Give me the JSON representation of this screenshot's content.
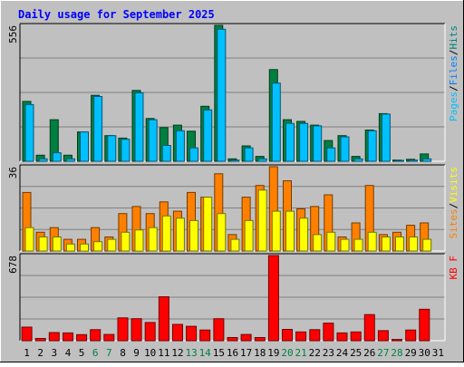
{
  "chart_data": {
    "type": "bar",
    "title": "Daily usage for September 2025",
    "categories": [
      "1",
      "2",
      "3",
      "4",
      "5",
      "6",
      "7",
      "8",
      "9",
      "10",
      "11",
      "12",
      "13",
      "14",
      "15",
      "16",
      "17",
      "18",
      "19",
      "20",
      "21",
      "22",
      "23",
      "24",
      "25",
      "26",
      "27",
      "28",
      "29",
      "30",
      "31"
    ],
    "weekend_days": [
      "6",
      "7",
      "13",
      "14",
      "20",
      "21",
      "27",
      "28"
    ],
    "panels": [
      {
        "id": "hits",
        "ymax_label": "556",
        "ymax": 556,
        "legend": [
          "Pages",
          "/",
          "Files",
          "/",
          "Hits"
        ],
        "series": [
          {
            "name": "Hits",
            "color": "#008040",
            "values": [
              245,
              25,
              170,
              25,
              120,
              270,
              105,
              95,
              290,
              175,
              138,
              148,
              123,
              225,
              556,
              10,
              63,
              20,
              375,
              170,
              163,
              148,
              85,
              105,
              20,
              128,
              195,
              5,
              8,
              30,
              0
            ]
          },
          {
            "name": "Files",
            "color": "#00C0FF",
            "values": [
              232,
              10,
              35,
              10,
              120,
              265,
              105,
              90,
              280,
              170,
              65,
              125,
              55,
              210,
              540,
              5,
              55,
              10,
              320,
              155,
              155,
              145,
              55,
              100,
              10,
              125,
              193,
              3,
              5,
              10,
              0
            ]
          }
        ]
      },
      {
        "id": "sites",
        "ymax_label": "36",
        "ymax": 36,
        "legend": [
          "Sites",
          "/",
          "Visits"
        ],
        "series": [
          {
            "name": "Visits",
            "color": "#FF8000",
            "values": [
              25,
              8,
              10,
              5,
              5,
              10,
              6,
              16,
              19,
              16,
              21,
              17,
              25,
              23,
              33,
              7,
              23,
              28,
              36,
              30,
              18,
              19,
              24,
              6,
              12,
              28,
              7,
              8,
              11,
              12,
              0
            ]
          },
          {
            "name": "Sites",
            "color": "#FFFF00",
            "values": [
              10,
              6,
              6,
              3,
              3,
              4,
              5,
              8,
              9,
              10,
              15,
              14,
              13,
              23,
              16,
              5,
              13,
              26,
              17,
              17,
              14,
              7,
              8,
              5,
              5,
              8,
              6,
              6,
              6,
              5,
              0
            ]
          }
        ]
      },
      {
        "id": "kbytes",
        "ymax_label": "678",
        "ymax": 678,
        "legend": [
          "KB F"
        ],
        "series": [
          {
            "name": "KB F",
            "color": "#FF0000",
            "values": [
              108,
              18,
              65,
              62,
              48,
              88,
              50,
              182,
              175,
              145,
              350,
              130,
              115,
              85,
              175,
              25,
              50,
              25,
              678,
              90,
              70,
              88,
              140,
              62,
              70,
              208,
              80,
              10,
              85,
              250,
              0
            ]
          }
        ]
      }
    ]
  }
}
